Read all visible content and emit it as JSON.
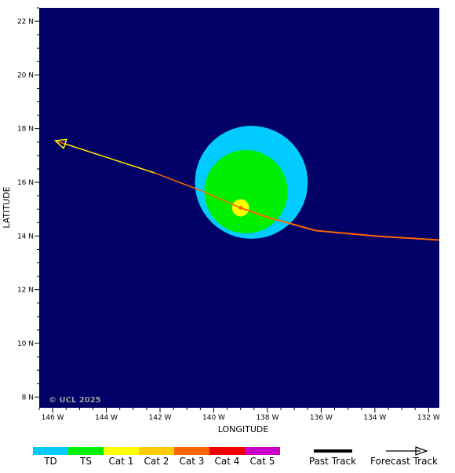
{
  "map": {
    "background_color": "#000066",
    "copyright": "© UCL 2025",
    "x_axis_title": "LONGITUDE",
    "y_axis_title": "LATITUDE",
    "lon_range": [
      -146.5,
      -131.6
    ],
    "lat_range": [
      7.6,
      22.5
    ],
    "lon_ticks": [
      {
        "value": -146,
        "label": "146 W"
      },
      {
        "value": -144,
        "label": "144 W"
      },
      {
        "value": -142,
        "label": "142 W"
      },
      {
        "value": -140,
        "label": "140 W"
      },
      {
        "value": -138,
        "label": "138 W"
      },
      {
        "value": -136,
        "label": "136 W"
      },
      {
        "value": -134,
        "label": "134 W"
      },
      {
        "value": -132,
        "label": "132 W"
      }
    ],
    "lat_ticks": [
      {
        "value": 8,
        "label": "8 N"
      },
      {
        "value": 10,
        "label": "10 N"
      },
      {
        "value": 12,
        "label": "12 N"
      },
      {
        "value": 14,
        "label": "14 N"
      },
      {
        "value": 16,
        "label": "16 N"
      },
      {
        "value": 18,
        "label": "18 N"
      },
      {
        "value": 20,
        "label": "20 N"
      },
      {
        "value": 22,
        "label": "22 N"
      }
    ]
  },
  "storm": {
    "center": {
      "lon": -139.0,
      "lat": 15.05
    },
    "wind_zones": [
      {
        "category": "TD",
        "center_lon": -138.6,
        "center_lat": 16.0,
        "radius_deg": 2.1,
        "color": "#00ccff"
      },
      {
        "category": "TS",
        "center_lon": -138.8,
        "center_lat": 15.65,
        "radius_deg": 1.55,
        "color": "#00ee00"
      },
      {
        "category": "Cat 1",
        "center_lon": -139.0,
        "center_lat": 15.05,
        "radius_deg": 0.32,
        "color": "#ffff00"
      }
    ],
    "center_marker_color": "#ff6600",
    "past_track": {
      "color": "#ff6600",
      "points": [
        [
          -131.6,
          13.85
        ],
        [
          -134.0,
          14.0
        ],
        [
          -136.2,
          14.2
        ],
        [
          -138.0,
          14.7
        ],
        [
          -139.0,
          15.05
        ]
      ]
    },
    "forecast_track": {
      "line_color": "#ff6600",
      "arrow_color": "#ffff00",
      "points": [
        [
          -139.0,
          15.05
        ],
        [
          -140.5,
          15.7
        ],
        [
          -142.2,
          16.35
        ],
        [
          -145.9,
          17.55
        ]
      ]
    }
  },
  "legend": {
    "categories": [
      {
        "label": "TD",
        "color": "#00ccff"
      },
      {
        "label": "TS",
        "color": "#00ee00"
      },
      {
        "label": "Cat 1",
        "color": "#ffff00"
      },
      {
        "label": "Cat 2",
        "color": "#ffcc00"
      },
      {
        "label": "Cat 3",
        "color": "#ff6600"
      },
      {
        "label": "Cat 4",
        "color": "#ee0000"
      },
      {
        "label": "Cat 5",
        "color": "#cc00cc"
      }
    ],
    "past_track_label": "Past Track",
    "forecast_track_label": "Forecast Track"
  }
}
